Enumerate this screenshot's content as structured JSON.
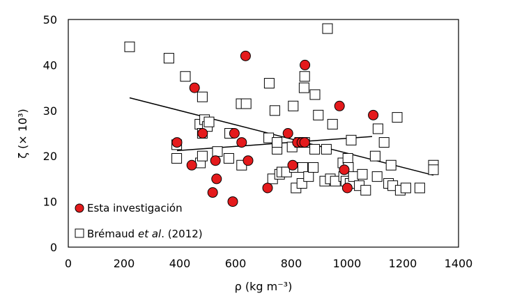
{
  "chart_data": {
    "type": "scatter",
    "xlabel": "ρ  (kg m⁻³)",
    "ylabel": "ζ  (× 10³)",
    "xlim": [
      0,
      1400
    ],
    "ylim": [
      0,
      50
    ],
    "x_ticks": [
      "0",
      "200",
      "400",
      "600",
      "800",
      "1000",
      "1200",
      "1400"
    ],
    "y_ticks": [
      "0",
      "10",
      "20",
      "30",
      "40",
      "50"
    ],
    "grid": false,
    "legend_position": "bottom-left",
    "series": [
      {
        "name": "Esta investigación",
        "marker": "circle",
        "color": "#e41a1c",
        "points": [
          [
            390,
            23
          ],
          [
            443,
            18
          ],
          [
            453,
            35
          ],
          [
            482,
            25
          ],
          [
            518,
            12
          ],
          [
            528,
            19
          ],
          [
            532,
            15
          ],
          [
            590,
            10
          ],
          [
            596,
            25
          ],
          [
            622,
            23
          ],
          [
            636,
            42
          ],
          [
            645,
            19
          ],
          [
            715,
            13
          ],
          [
            788,
            25
          ],
          [
            805,
            18
          ],
          [
            822,
            23
          ],
          [
            838,
            23
          ],
          [
            848,
            23
          ],
          [
            849,
            40
          ],
          [
            973,
            31
          ],
          [
            990,
            17
          ],
          [
            1001,
            13
          ],
          [
            1094,
            29
          ]
        ]
      },
      {
        "name": "Brémaud et al. (2012)",
        "legend_prefix": "Brémaud ",
        "legend_italic": "et al",
        "legend_suffix": ". (2012)",
        "marker": "square",
        "color": "#ffffff",
        "points": [
          [
            220,
            44
          ],
          [
            361,
            41.5
          ],
          [
            389,
            22.5
          ],
          [
            389,
            19.5
          ],
          [
            420,
            37.5
          ],
          [
            472,
            27
          ],
          [
            474,
            18.5
          ],
          [
            481,
            33
          ],
          [
            481,
            25
          ],
          [
            481,
            20
          ],
          [
            489,
            28
          ],
          [
            499,
            26.5
          ],
          [
            505,
            27.5
          ],
          [
            535,
            21
          ],
          [
            576,
            19.5
          ],
          [
            579,
            25
          ],
          [
            620,
            31.5
          ],
          [
            622,
            18
          ],
          [
            638,
            31.5
          ],
          [
            719,
            24
          ],
          [
            721,
            36
          ],
          [
            733,
            15
          ],
          [
            741,
            30
          ],
          [
            749,
            21.5
          ],
          [
            749,
            23
          ],
          [
            758,
            16
          ],
          [
            766,
            16.5
          ],
          [
            783,
            16.5
          ],
          [
            803,
            22
          ],
          [
            807,
            31
          ],
          [
            811,
            17.5
          ],
          [
            817,
            13
          ],
          [
            830,
            23
          ],
          [
            838,
            14
          ],
          [
            841,
            17.5
          ],
          [
            846,
            35
          ],
          [
            848,
            37.5
          ],
          [
            848,
            23
          ],
          [
            862,
            15.5
          ],
          [
            879,
            17.5
          ],
          [
            884,
            21.5
          ],
          [
            885,
            33.5
          ],
          [
            897,
            29
          ],
          [
            920,
            14.5
          ],
          [
            926,
            21.5
          ],
          [
            930,
            48
          ],
          [
            940,
            15
          ],
          [
            948,
            27
          ],
          [
            958,
            14.5
          ],
          [
            985,
            18.5
          ],
          [
            988,
            15.5
          ],
          [
            996,
            14.5
          ],
          [
            1003,
            19.5
          ],
          [
            1005,
            17.5
          ],
          [
            1011,
            14
          ],
          [
            1015,
            23.5
          ],
          [
            1023,
            15.5
          ],
          [
            1044,
            13.5
          ],
          [
            1055,
            16
          ],
          [
            1067,
            12.5
          ],
          [
            1101,
            20
          ],
          [
            1108,
            15.5
          ],
          [
            1111,
            26
          ],
          [
            1133,
            23
          ],
          [
            1149,
            14
          ],
          [
            1158,
            18
          ],
          [
            1164,
            13.5
          ],
          [
            1180,
            28.5
          ],
          [
            1191,
            12.5
          ],
          [
            1211,
            13
          ],
          [
            1261,
            13
          ],
          [
            1310,
            18
          ],
          [
            1310,
            17
          ]
        ]
      }
    ],
    "trendlines": [
      {
        "name": "trend-decreasing",
        "x": [
          220,
          1310
        ],
        "y": [
          32.8,
          15.8
        ]
      },
      {
        "name": "trend-increasing",
        "x": [
          390,
          1090
        ],
        "y": [
          21.2,
          24.3
        ]
      }
    ]
  }
}
